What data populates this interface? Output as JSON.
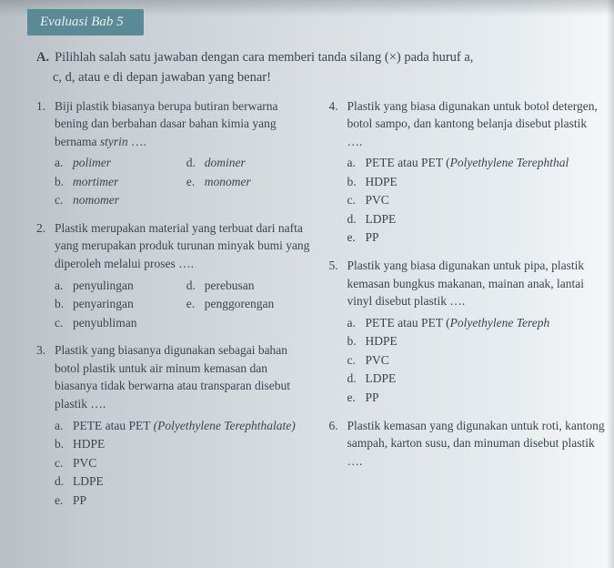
{
  "tab_label": "Evaluasi Bab 5",
  "instruction_letter": "A.",
  "instruction_text_line1": "Pilihlah salah satu jawaban dengan cara memberi tanda silang (×) pada huruf a,",
  "instruction_text_line2": "c, d, atau e di depan jawaban yang benar!",
  "questions_left": [
    {
      "num": "1.",
      "stem_pre": "Biji plastik biasanya berupa butiran berwarna bening dan berbahan dasar bahan kimia yang bernama ",
      "stem_italic": "styrin",
      "stem_post": " ….",
      "opts_grid": [
        {
          "l": "a.",
          "t": "polimer",
          "it": true
        },
        {
          "l": "d.",
          "t": "dominer",
          "it": true
        },
        {
          "l": "b.",
          "t": "mortimer",
          "it": true
        },
        {
          "l": "e.",
          "t": "monomer",
          "it": true
        },
        {
          "l": "c.",
          "t": "nomomer",
          "it": true
        }
      ]
    },
    {
      "num": "2.",
      "stem_pre": "Plastik merupakan material yang terbuat dari nafta yang merupakan produk turunan minyak bumi yang diperoleh melalui proses ….",
      "opts_grid": [
        {
          "l": "a.",
          "t": "penyulingan"
        },
        {
          "l": "d.",
          "t": "perebusan"
        },
        {
          "l": "b.",
          "t": "penyaringan"
        },
        {
          "l": "e.",
          "t": "penggorengan"
        },
        {
          "l": "c.",
          "t": "penyubliman"
        }
      ]
    },
    {
      "num": "3.",
      "stem_pre": "Plastik yang biasanya digunakan sebagai bahan botol plastik untuk air minum kemasan dan biasanya tidak berwarna atau transparan disebut plastik ….",
      "opts": [
        {
          "l": "a.",
          "t": "PETE atau PET (Polyethylene Terephthalate)",
          "it_part": "(Polyethylene Terephthalate)",
          "pre": "PETE atau PET "
        },
        {
          "l": "b.",
          "t": "HDPE"
        },
        {
          "l": "c.",
          "t": "PVC"
        },
        {
          "l": "d.",
          "t": "LDPE"
        },
        {
          "l": "e.",
          "t": "PP"
        }
      ]
    }
  ],
  "questions_right": [
    {
      "num": "4.",
      "stem_pre": "Plastik yang biasa digunakan untuk botol detergen, botol sampo, dan kantong belanja disebut plastik ….",
      "opts": [
        {
          "l": "a.",
          "pre": "PETE atau PET (",
          "it_part": "Polyethylene Terephthal",
          "post": ""
        },
        {
          "l": "b.",
          "t": "HDPE"
        },
        {
          "l": "c.",
          "t": "PVC"
        },
        {
          "l": "d.",
          "t": "LDPE"
        },
        {
          "l": "e.",
          "t": "PP"
        }
      ]
    },
    {
      "num": "5.",
      "stem_pre": "Plastik yang biasa digunakan untuk pipa, plastik kemasan bungkus makanan, mainan anak, lantai vinyl disebut plastik ….",
      "opts": [
        {
          "l": "a.",
          "pre": "PETE atau PET (",
          "it_part": "Polyethylene Tereph",
          "post": ""
        },
        {
          "l": "b.",
          "t": "HDPE"
        },
        {
          "l": "c.",
          "t": "PVC"
        },
        {
          "l": "d.",
          "t": "LDPE"
        },
        {
          "l": "e.",
          "t": "PP"
        }
      ]
    },
    {
      "num": "6.",
      "stem_pre": "Plastik kemasan yang digunakan untuk roti, kantong sampah, karton susu, dan minuman disebut plastik ….",
      "opts": []
    }
  ]
}
